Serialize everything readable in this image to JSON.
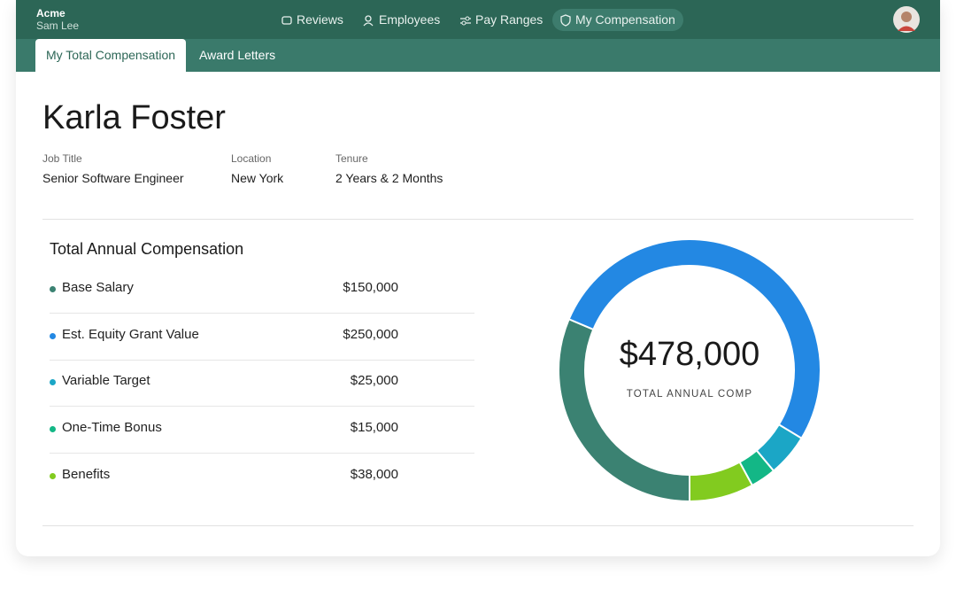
{
  "header": {
    "company": "Acme",
    "user": "Sam Lee"
  },
  "nav": [
    "Reviews",
    "Employees",
    "Pay Ranges",
    "My Compensation"
  ],
  "tabs": [
    "My Total Compensation",
    "Award Letters"
  ],
  "profile": {
    "name": "Karla Foster",
    "fields": [
      {
        "label": "Job Title",
        "value": "Senior Software Engineer"
      },
      {
        "label": "Location",
        "value": "New York"
      },
      {
        "label": "Tenure",
        "value": "2 Years & 2 Months"
      }
    ]
  },
  "compensation": {
    "title": "Total Annual Compensation",
    "items": [
      {
        "name": "Base Salary",
        "amount": 150000,
        "amount_label": "$150,000",
        "color": "#3b8272"
      },
      {
        "name": "Est. Equity Grant Value",
        "amount": 250000,
        "amount_label": "$250,000",
        "color": "#2388e3"
      },
      {
        "name": "Variable Target",
        "amount": 25000,
        "amount_label": "$25,000",
        "color": "#1ba6c6"
      },
      {
        "name": "One-Time Bonus",
        "amount": 15000,
        "amount_label": "$15,000",
        "color": "#13b786"
      },
      {
        "name": "Benefits",
        "amount": 38000,
        "amount_label": "$38,000",
        "color": "#82cb1f"
      }
    ],
    "total": {
      "value": 478000,
      "label": "$478,000"
    },
    "total_caption": "TOTAL ANNUAL COMP"
  }
}
